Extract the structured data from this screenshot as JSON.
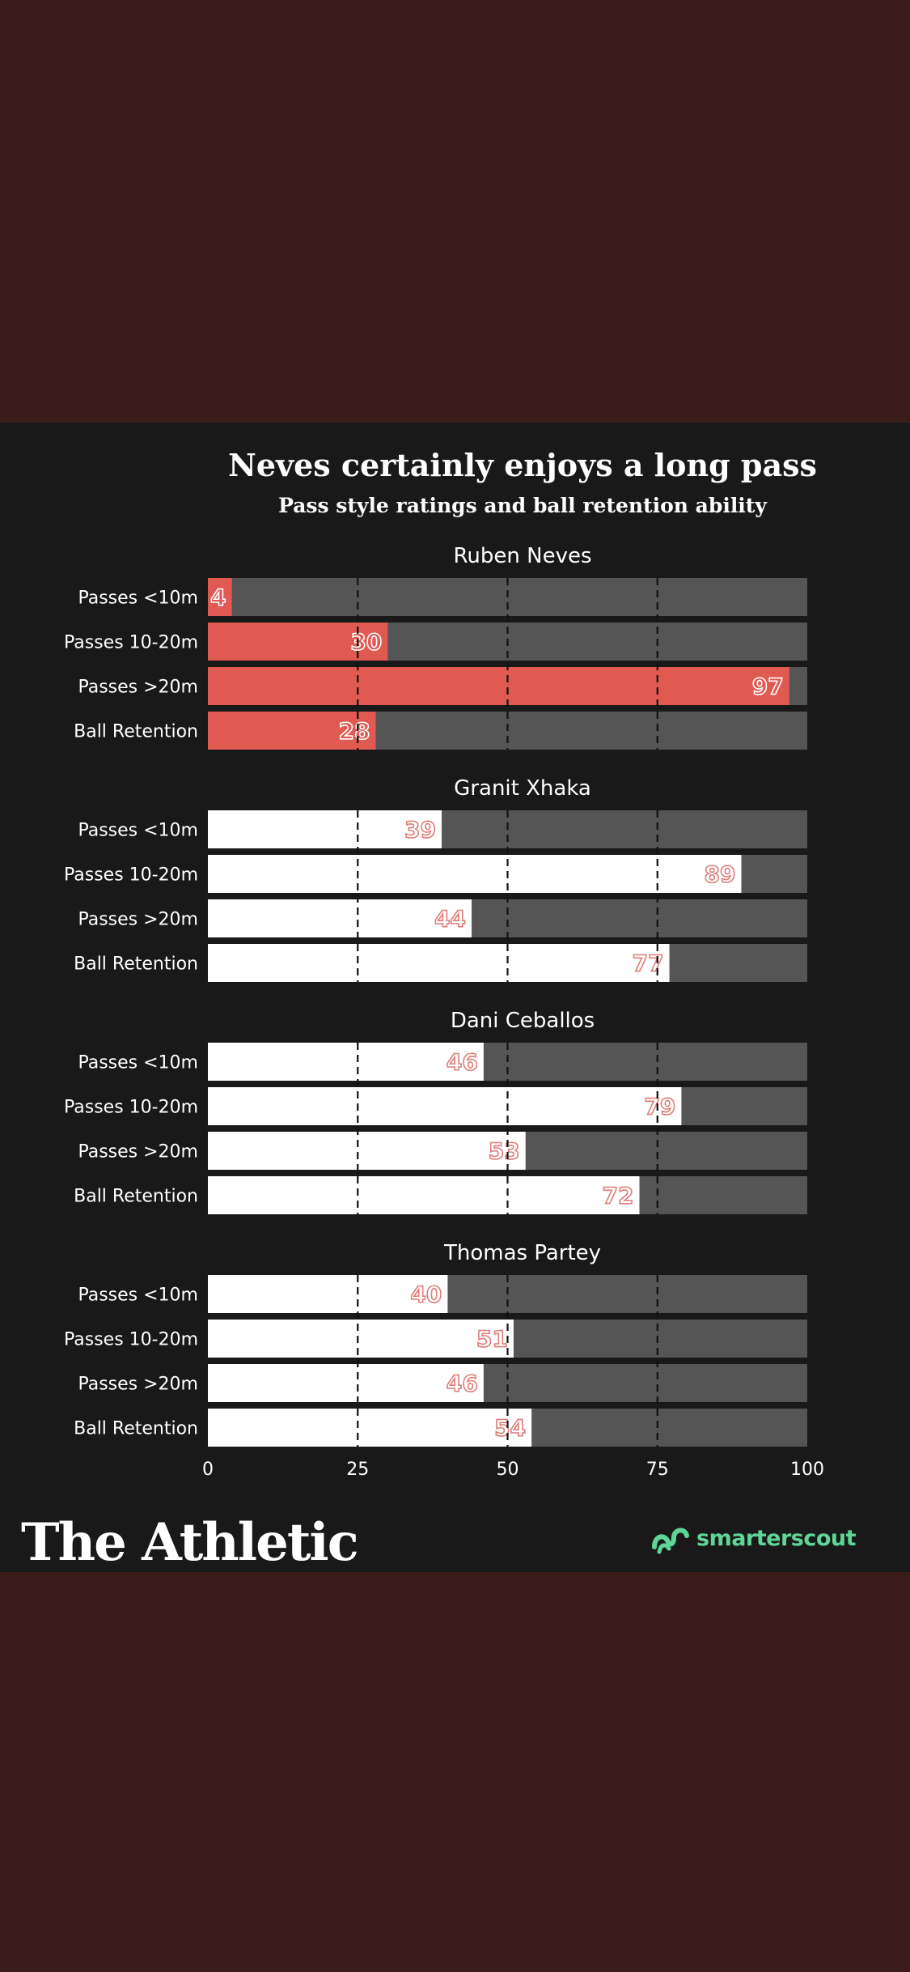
{
  "header": {
    "title": "Neves certainly enjoys a long pass",
    "subtitle": "Pass style ratings and ball retention ability"
  },
  "branding": {
    "publisher": "The Athletic",
    "partner": "smarterscout"
  },
  "colors": {
    "page_background": "#3a1c1b",
    "card_background": "#191919",
    "bar_track": "#555555",
    "highlight_bar": "#e05a52",
    "standard_bar": "#ffffff",
    "label_on_white": "#e07c77",
    "partner_green": "#5fd597"
  },
  "chart_data": {
    "type": "bar",
    "orientation": "horizontal",
    "xlim": [
      0,
      100
    ],
    "xticks": [
      0,
      25,
      50,
      75,
      100
    ],
    "grid": "dashed vertical lines at 25, 50, 75",
    "categories": [
      "Passes <10m",
      "Passes 10-20m",
      "Passes >20m",
      "Ball Retention"
    ],
    "panels": [
      {
        "player": "Ruben Neves",
        "highlight": true,
        "values": [
          4,
          30,
          97,
          28
        ]
      },
      {
        "player": "Granit Xhaka",
        "highlight": false,
        "values": [
          39,
          89,
          44,
          77
        ]
      },
      {
        "player": "Dani Ceballos",
        "highlight": false,
        "values": [
          46,
          79,
          53,
          72
        ]
      },
      {
        "player": "Thomas Partey",
        "highlight": false,
        "values": [
          40,
          51,
          46,
          54
        ]
      }
    ]
  }
}
